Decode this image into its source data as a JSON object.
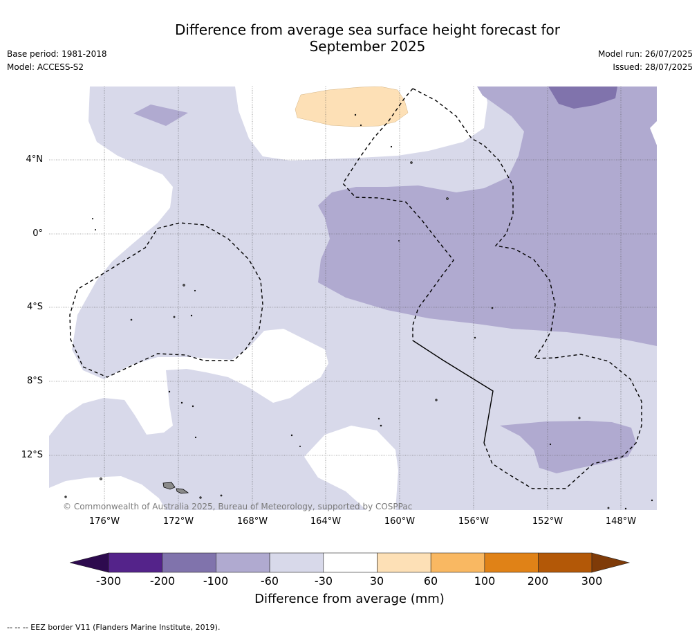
{
  "title": {
    "line1": "Difference from average sea surface height forecast for",
    "line2": "September 2025"
  },
  "meta": {
    "base_period": "Base period: 1981-2018",
    "model": "Model: ACCESS-S2",
    "model_run": "Model run: 26/07/2025",
    "issued": "Issued: 28/07/2025"
  },
  "axes": {
    "lat_labels": [
      "4°N",
      "0°",
      "4°S",
      "8°S",
      "12°S"
    ],
    "lon_labels": [
      "176°W",
      "172°W",
      "168°W",
      "164°W",
      "160°W",
      "156°W",
      "152°W",
      "148°W"
    ]
  },
  "copyright": "© Commonwealth of Australia 2025, Bureau of Meteorology, supported by COSPPac",
  "colorbar": {
    "label": "Difference from average (mm)",
    "ticks": [
      "-300",
      "-200",
      "-100",
      "-60",
      "-30",
      "30",
      "60",
      "100",
      "200",
      "300"
    ],
    "colors": {
      "below_-300": "#2d0a4e",
      "-300_-200": "#54238a",
      "-200_-100": "#8073ac",
      "-100_-60": "#b0aad0",
      "-60_-30": "#d8d9ea",
      "-30_30": "#ffffff",
      "30_60": "#fde0b6",
      "60_100": "#f9b862",
      "100_200": "#e08217",
      "200_300": "#b35807",
      "above_300": "#7f3b08"
    }
  },
  "legend_note": "--  --  -- EEZ border V11 (Flanders Marine Institute, 2019)."
}
